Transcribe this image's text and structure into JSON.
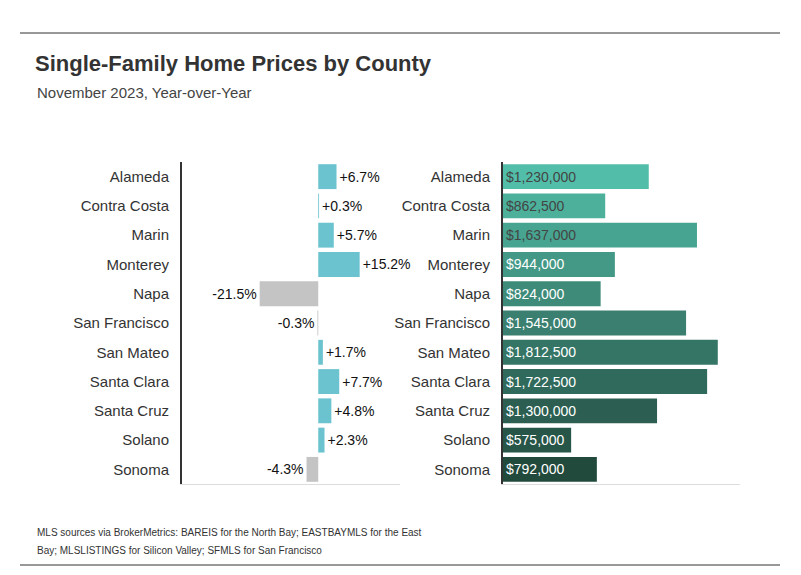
{
  "title": "Single-Family Home Prices by County",
  "subtitle": "November 2023, Year-over-Year",
  "source": [
    "MLS sources via BrokerMetrics: BAREIS for the North Bay; EASTBAYMLS for the East",
    "Bay; MLSLISTINGS for Silicon Valley; SFMLS for San Francisco"
  ],
  "chart_data": [
    {
      "type": "bar",
      "orientation": "horizontal",
      "categories": [
        "Alameda",
        "Contra Costa",
        "Marin",
        "Monterey",
        "Napa",
        "San Francisco",
        "San Mateo",
        "Santa Clara",
        "Santa Cruz",
        "Solano",
        "Sonoma"
      ],
      "values": [
        6.7,
        0.3,
        5.7,
        15.2,
        -21.5,
        -0.3,
        1.7,
        7.7,
        4.8,
        2.3,
        -4.3
      ],
      "value_labels": [
        "+6.7%",
        "+0.3%",
        "+5.7%",
        "+15.2%",
        "-21.5%",
        "-0.3%",
        "+1.7%",
        "+7.7%",
        "+4.8%",
        "+2.3%",
        "-4.3%"
      ],
      "colors": [
        "#6bc3cf",
        "#6bc3cf",
        "#6bc3cf",
        "#6bc3cf",
        "#c4c4c4",
        "#c4c4c4",
        "#6bc3cf",
        "#6bc3cf",
        "#6bc3cf",
        "#6bc3cf",
        "#c4c4c4"
      ],
      "xlim": [
        -50,
        30
      ],
      "xticks": [],
      "data_labels": true,
      "tick_labels": "y"
    },
    {
      "type": "bar",
      "orientation": "horizontal",
      "categories": [
        "Alameda",
        "Contra Costa",
        "Marin",
        "Monterey",
        "Napa",
        "San Francisco",
        "San Mateo",
        "Santa Clara",
        "Santa Cruz",
        "Solano",
        "Sonoma"
      ],
      "values": [
        1230000,
        862500,
        1637000,
        944000,
        824000,
        1545000,
        1812500,
        1722500,
        1300000,
        575000,
        792000
      ],
      "value_labels": [
        "$1,230,000",
        "$862,500",
        "$1,637,000",
        "$944,000",
        "$824,000",
        "$1,545,000",
        "$1,812,500",
        "$1,722,500",
        "$1,300,000",
        "$575,000",
        "$792,000"
      ],
      "colors": [
        "#52bea9",
        "#4cb09b",
        "#47a491",
        "#439886",
        "#3e8b7a",
        "#3a7f70",
        "#357566",
        "#306a5c",
        "#2c5f52",
        "#275548",
        "#214a3d"
      ],
      "xlim": [
        0,
        2000000
      ],
      "xticks": [],
      "data_labels": true,
      "tick_labels": "y"
    }
  ]
}
